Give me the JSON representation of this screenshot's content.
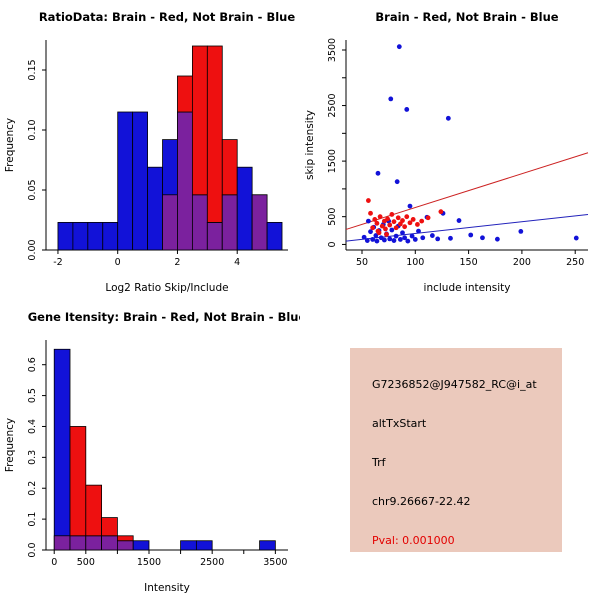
{
  "colors": {
    "red": "#ee1010",
    "blue": "#1212d8",
    "overlap": "#7b219e",
    "red_line": "#cc2222",
    "blue_line": "#2222bb",
    "axis": "#000000"
  },
  "chart_data": [
    {
      "id": "ratio_hist",
      "type": "histogram",
      "title": "RatioData: Brain - Red, Not Brain - Blue",
      "xlabel": "Log2 Ratio Skip/Include",
      "ylabel": "Frequency",
      "legend": "Brain = red, Not Brain = blue, overlap = purple",
      "bin_start": -2,
      "bin_width": 0.5,
      "xlim": [
        -2.4,
        5.7
      ],
      "ylim": [
        0,
        0.175
      ],
      "grid": false,
      "series": [
        {
          "name": "Not Brain",
          "color_key": "blue",
          "values": [
            0.023,
            0.023,
            0.023,
            0.023,
            0.115,
            0.115,
            0.069,
            0.092,
            0.115,
            0.046,
            0.023,
            0.046,
            0.069,
            0.046,
            0.023
          ]
        },
        {
          "name": "Brain",
          "color_key": "red",
          "values": [
            0,
            0,
            0,
            0,
            0,
            0,
            0,
            0.046,
            0.145,
            0.17,
            0.17,
            0.092,
            0,
            0.046,
            0
          ]
        }
      ],
      "xticks": [
        {
          "v": -2,
          "label": "-2"
        },
        {
          "v": 0,
          "label": "0"
        },
        {
          "v": 2,
          "label": "2"
        },
        {
          "v": 4,
          "label": "4"
        }
      ],
      "yticks": [
        {
          "v": 0,
          "label": "0.00"
        },
        {
          "v": 0.05,
          "label": "0.05"
        },
        {
          "v": 0.1,
          "label": "0.10"
        },
        {
          "v": 0.15,
          "label": "0.15"
        }
      ]
    },
    {
      "id": "intensity_scatter",
      "type": "scatter",
      "title": "Brain - Red, Not Brain - Blue",
      "xlabel": "include intensity",
      "ylabel": "skip intensity",
      "legend": "Brain = red, Not Brain = blue; red and blue fit lines",
      "xlim": [
        35,
        262
      ],
      "ylim": [
        -100,
        3680
      ],
      "grid": false,
      "series": [
        {
          "name": "Not Brain",
          "color_key": "blue",
          "points": [
            [
              85,
              3560
            ],
            [
              77,
              2620
            ],
            [
              92,
              2430
            ],
            [
              131,
              2270
            ],
            [
              65,
              1280
            ],
            [
              83,
              1130
            ],
            [
              52,
              130
            ],
            [
              55,
              70
            ],
            [
              56,
              420
            ],
            [
              58,
              230
            ],
            [
              60,
              90
            ],
            [
              61,
              310
            ],
            [
              63,
              160
            ],
            [
              64,
              60
            ],
            [
              66,
              250
            ],
            [
              68,
              120
            ],
            [
              70,
              360
            ],
            [
              71,
              80
            ],
            [
              73,
              190
            ],
            [
              75,
              420
            ],
            [
              76,
              100
            ],
            [
              78,
              260
            ],
            [
              80,
              70
            ],
            [
              82,
              150
            ],
            [
              84,
              330
            ],
            [
              86,
              90
            ],
            [
              88,
              210
            ],
            [
              90,
              120
            ],
            [
              93,
              60
            ],
            [
              95,
              690
            ],
            [
              97,
              150
            ],
            [
              100,
              90
            ],
            [
              103,
              240
            ],
            [
              107,
              120
            ],
            [
              111,
              490
            ],
            [
              116,
              160
            ],
            [
              121,
              100
            ],
            [
              126,
              560
            ],
            [
              133,
              110
            ],
            [
              141,
              430
            ],
            [
              152,
              170
            ],
            [
              163,
              120
            ],
            [
              177,
              95
            ],
            [
              199,
              235
            ],
            [
              251,
              115
            ]
          ]
        },
        {
          "name": "Brain",
          "color_key": "red",
          "points": [
            [
              56,
              790
            ],
            [
              58,
              560
            ],
            [
              60,
              300
            ],
            [
              62,
              450
            ],
            [
              64,
              380
            ],
            [
              65,
              240
            ],
            [
              66,
              210
            ],
            [
              67,
              500
            ],
            [
              69,
              330
            ],
            [
              71,
              420
            ],
            [
              72,
              280
            ],
            [
              73,
              180
            ],
            [
              74,
              460
            ],
            [
              76,
              350
            ],
            [
              78,
              540
            ],
            [
              80,
              410
            ],
            [
              82,
              300
            ],
            [
              84,
              480
            ],
            [
              86,
              370
            ],
            [
              88,
              430
            ],
            [
              90,
              320
            ],
            [
              92,
              500
            ],
            [
              95,
              390
            ],
            [
              98,
              450
            ],
            [
              102,
              360
            ],
            [
              106,
              420
            ],
            [
              112,
              480
            ],
            [
              124,
              590
            ]
          ]
        }
      ],
      "lines": [
        {
          "name": "brain-fit-line",
          "color_key": "red_line",
          "x1": 35,
          "y1": 270,
          "x2": 262,
          "y2": 1650
        },
        {
          "name": "notbrain-fit-line",
          "color_key": "blue_line",
          "x1": 35,
          "y1": 60,
          "x2": 262,
          "y2": 540
        }
      ],
      "xticks": [
        {
          "v": 50,
          "label": "50"
        },
        {
          "v": 100,
          "label": "100"
        },
        {
          "v": 150,
          "label": "150"
        },
        {
          "v": 200,
          "label": "200"
        },
        {
          "v": 250,
          "label": "250"
        }
      ],
      "yticks": [
        {
          "v": 0,
          "label": "0"
        },
        {
          "v": 500,
          "label": "500"
        },
        {
          "v": 1000,
          "label": ""
        },
        {
          "v": 1500,
          "label": "1500"
        },
        {
          "v": 2000,
          "label": ""
        },
        {
          "v": 2500,
          "label": "2500"
        },
        {
          "v": 3000,
          "label": ""
        },
        {
          "v": 3500,
          "label": "3500"
        }
      ]
    },
    {
      "id": "gene_intensity_hist",
      "type": "histogram",
      "title": "Gene Itensity: Brain - Red, Not Brain - Blue",
      "xlabel": "Intensity",
      "ylabel": "Frequency",
      "legend": "Brain = red, Not Brain = blue, overlap = purple",
      "bin_start": 0,
      "bin_width": 250,
      "xlim": [
        -130,
        3700
      ],
      "ylim": [
        0,
        0.68
      ],
      "grid": false,
      "series": [
        {
          "name": "Not Brain",
          "color_key": "blue",
          "values": [
            0.65,
            0.046,
            0.046,
            0.046,
            0.03,
            0.03,
            0,
            0,
            0.03,
            0.03,
            0,
            0,
            0,
            0.03
          ]
        },
        {
          "name": "Brain",
          "color_key": "red",
          "values": [
            0.046,
            0.4,
            0.21,
            0.105,
            0.046,
            0,
            0,
            0,
            0,
            0,
            0,
            0,
            0,
            0
          ]
        }
      ],
      "xticks": [
        {
          "v": 0,
          "label": "0"
        },
        {
          "v": 500,
          "label": "500"
        },
        {
          "v": 1000,
          "label": ""
        },
        {
          "v": 1500,
          "label": "1500"
        },
        {
          "v": 2000,
          "label": ""
        },
        {
          "v": 2500,
          "label": "2500"
        },
        {
          "v": 3000,
          "label": ""
        },
        {
          "v": 3500,
          "label": "3500"
        }
      ],
      "yticks": [
        {
          "v": 0,
          "label": "0.0"
        },
        {
          "v": 0.1,
          "label": "0.1"
        },
        {
          "v": 0.2,
          "label": "0.2"
        },
        {
          "v": 0.3,
          "label": "0.3"
        },
        {
          "v": 0.4,
          "label": "0.4"
        },
        {
          "v": 0.5,
          "label": "0.5"
        },
        {
          "v": 0.6,
          "label": "0.6"
        }
      ]
    }
  ],
  "info_box": {
    "probe_id": "G7236852@J947582_RC@i_at",
    "event_type": "altTxStart",
    "gene": "Trf",
    "location": "chr9.26667-22.42",
    "pval": "Pval: 0.001000",
    "bg_color": "#ebc9bc",
    "pval_color": "#e30000"
  }
}
